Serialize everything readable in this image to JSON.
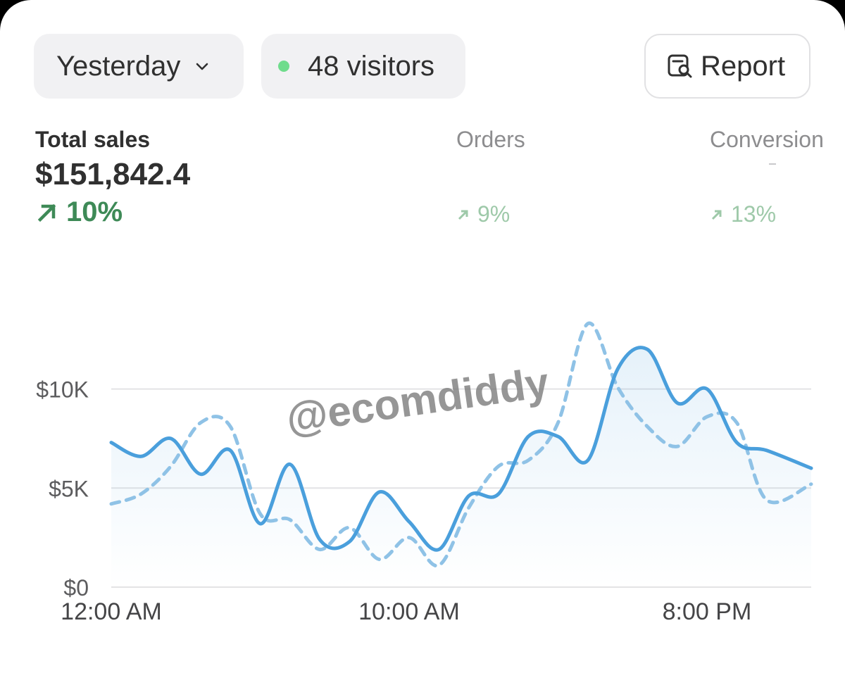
{
  "filters": {
    "date_range": "Yesterday",
    "visitors": "48 visitors",
    "report_label": "Report"
  },
  "metrics": {
    "total_sales": {
      "label": "Total sales",
      "value": "$151,842.4",
      "change": "10%"
    },
    "orders": {
      "label": "Orders",
      "change": "9%"
    },
    "conversion": {
      "label": "Conversion",
      "change": "13%"
    }
  },
  "colors": {
    "current_series": "#4a9fdc",
    "comparison_series": "#8fc2e6",
    "positive": "#3e8a57",
    "live_dot": "#6fdc8c"
  },
  "watermark": "@ecomdiddy",
  "chart_data": {
    "type": "line",
    "x_ticks": [
      "12:00 AM",
      "10:00 AM",
      "8:00 PM"
    ],
    "y_ticks": [
      "$0",
      "$5K",
      "$10K"
    ],
    "ylim": [
      0,
      14000
    ],
    "xlim": [
      0,
      23.5
    ],
    "grid": true,
    "series": [
      {
        "style": "solid",
        "points": [
          [
            0,
            7300
          ],
          [
            1,
            6600
          ],
          [
            2,
            7500
          ],
          [
            3,
            5700
          ],
          [
            4,
            6900
          ],
          [
            5,
            3200
          ],
          [
            6,
            6200
          ],
          [
            7,
            2400
          ],
          [
            8,
            2300
          ],
          [
            9,
            4800
          ],
          [
            10,
            3300
          ],
          [
            11,
            1900
          ],
          [
            12,
            4600
          ],
          [
            13,
            4700
          ],
          [
            14,
            7600
          ],
          [
            15,
            7600
          ],
          [
            16,
            6400
          ],
          [
            17,
            11000
          ],
          [
            18,
            12000
          ],
          [
            19,
            9300
          ],
          [
            20,
            10000
          ],
          [
            21,
            7300
          ],
          [
            22,
            6900
          ],
          [
            23.5,
            6000
          ]
        ]
      },
      {
        "style": "dashed",
        "points": [
          [
            0,
            4200
          ],
          [
            1,
            4700
          ],
          [
            2,
            6100
          ],
          [
            3,
            8300
          ],
          [
            4,
            8100
          ],
          [
            5,
            3700
          ],
          [
            6,
            3400
          ],
          [
            7,
            1900
          ],
          [
            8,
            3000
          ],
          [
            9,
            1400
          ],
          [
            10,
            2500
          ],
          [
            11,
            1100
          ],
          [
            12,
            4000
          ],
          [
            13,
            6100
          ],
          [
            14,
            6400
          ],
          [
            15,
            8300
          ],
          [
            16,
            13300
          ],
          [
            17,
            10100
          ],
          [
            18,
            8100
          ],
          [
            19,
            7100
          ],
          [
            20,
            8600
          ],
          [
            21,
            8300
          ],
          [
            22,
            4400
          ],
          [
            23.5,
            5200
          ]
        ]
      }
    ]
  }
}
